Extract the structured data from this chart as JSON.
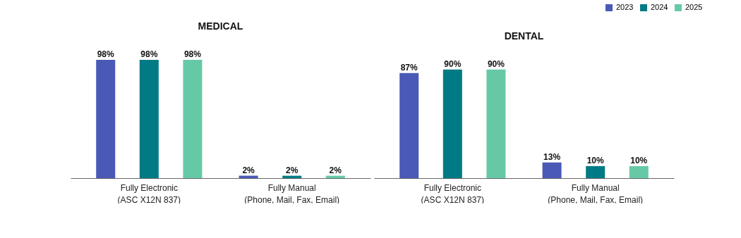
{
  "chart_data": [
    {
      "type": "bar",
      "title": "MEDICAL",
      "categories": [
        "Fully Electronic\n(ASC X12N 837)",
        "Fully Manual\n(Phone, Mail, Fax, Email)"
      ],
      "legend": "top right",
      "series": [
        {
          "name": "2023",
          "color": "#4a58b6",
          "values": [
            98,
            2
          ],
          "value_labels": [
            "98%",
            "2%"
          ]
        },
        {
          "name": "2024",
          "color": "#007a84",
          "values": [
            98,
            2
          ],
          "value_labels": [
            "98%",
            "2%"
          ]
        },
        {
          "name": "2025",
          "color": "#66c9a6",
          "values": [
            98,
            2
          ],
          "value_labels": [
            "98%",
            "2%"
          ]
        }
      ]
    },
    {
      "type": "bar",
      "title": "DENTAL",
      "categories": [
        "Fully Electronic\n(ASC X12N 837)",
        "Fully Manual\n(Phone, Mail, Fax, Email)"
      ],
      "legend": "top right",
      "series": [
        {
          "name": "2023",
          "color": "#4a58b6",
          "values": [
            87,
            13
          ],
          "value_labels": [
            "87%",
            "13%"
          ]
        },
        {
          "name": "2024",
          "color": "#007a84",
          "values": [
            90,
            10
          ],
          "value_labels": [
            "90%",
            "10%"
          ]
        },
        {
          "name": "2025",
          "color": "#66c9a6",
          "values": [
            90,
            10
          ],
          "value_labels": [
            "90%",
            "10%"
          ]
        }
      ]
    }
  ]
}
